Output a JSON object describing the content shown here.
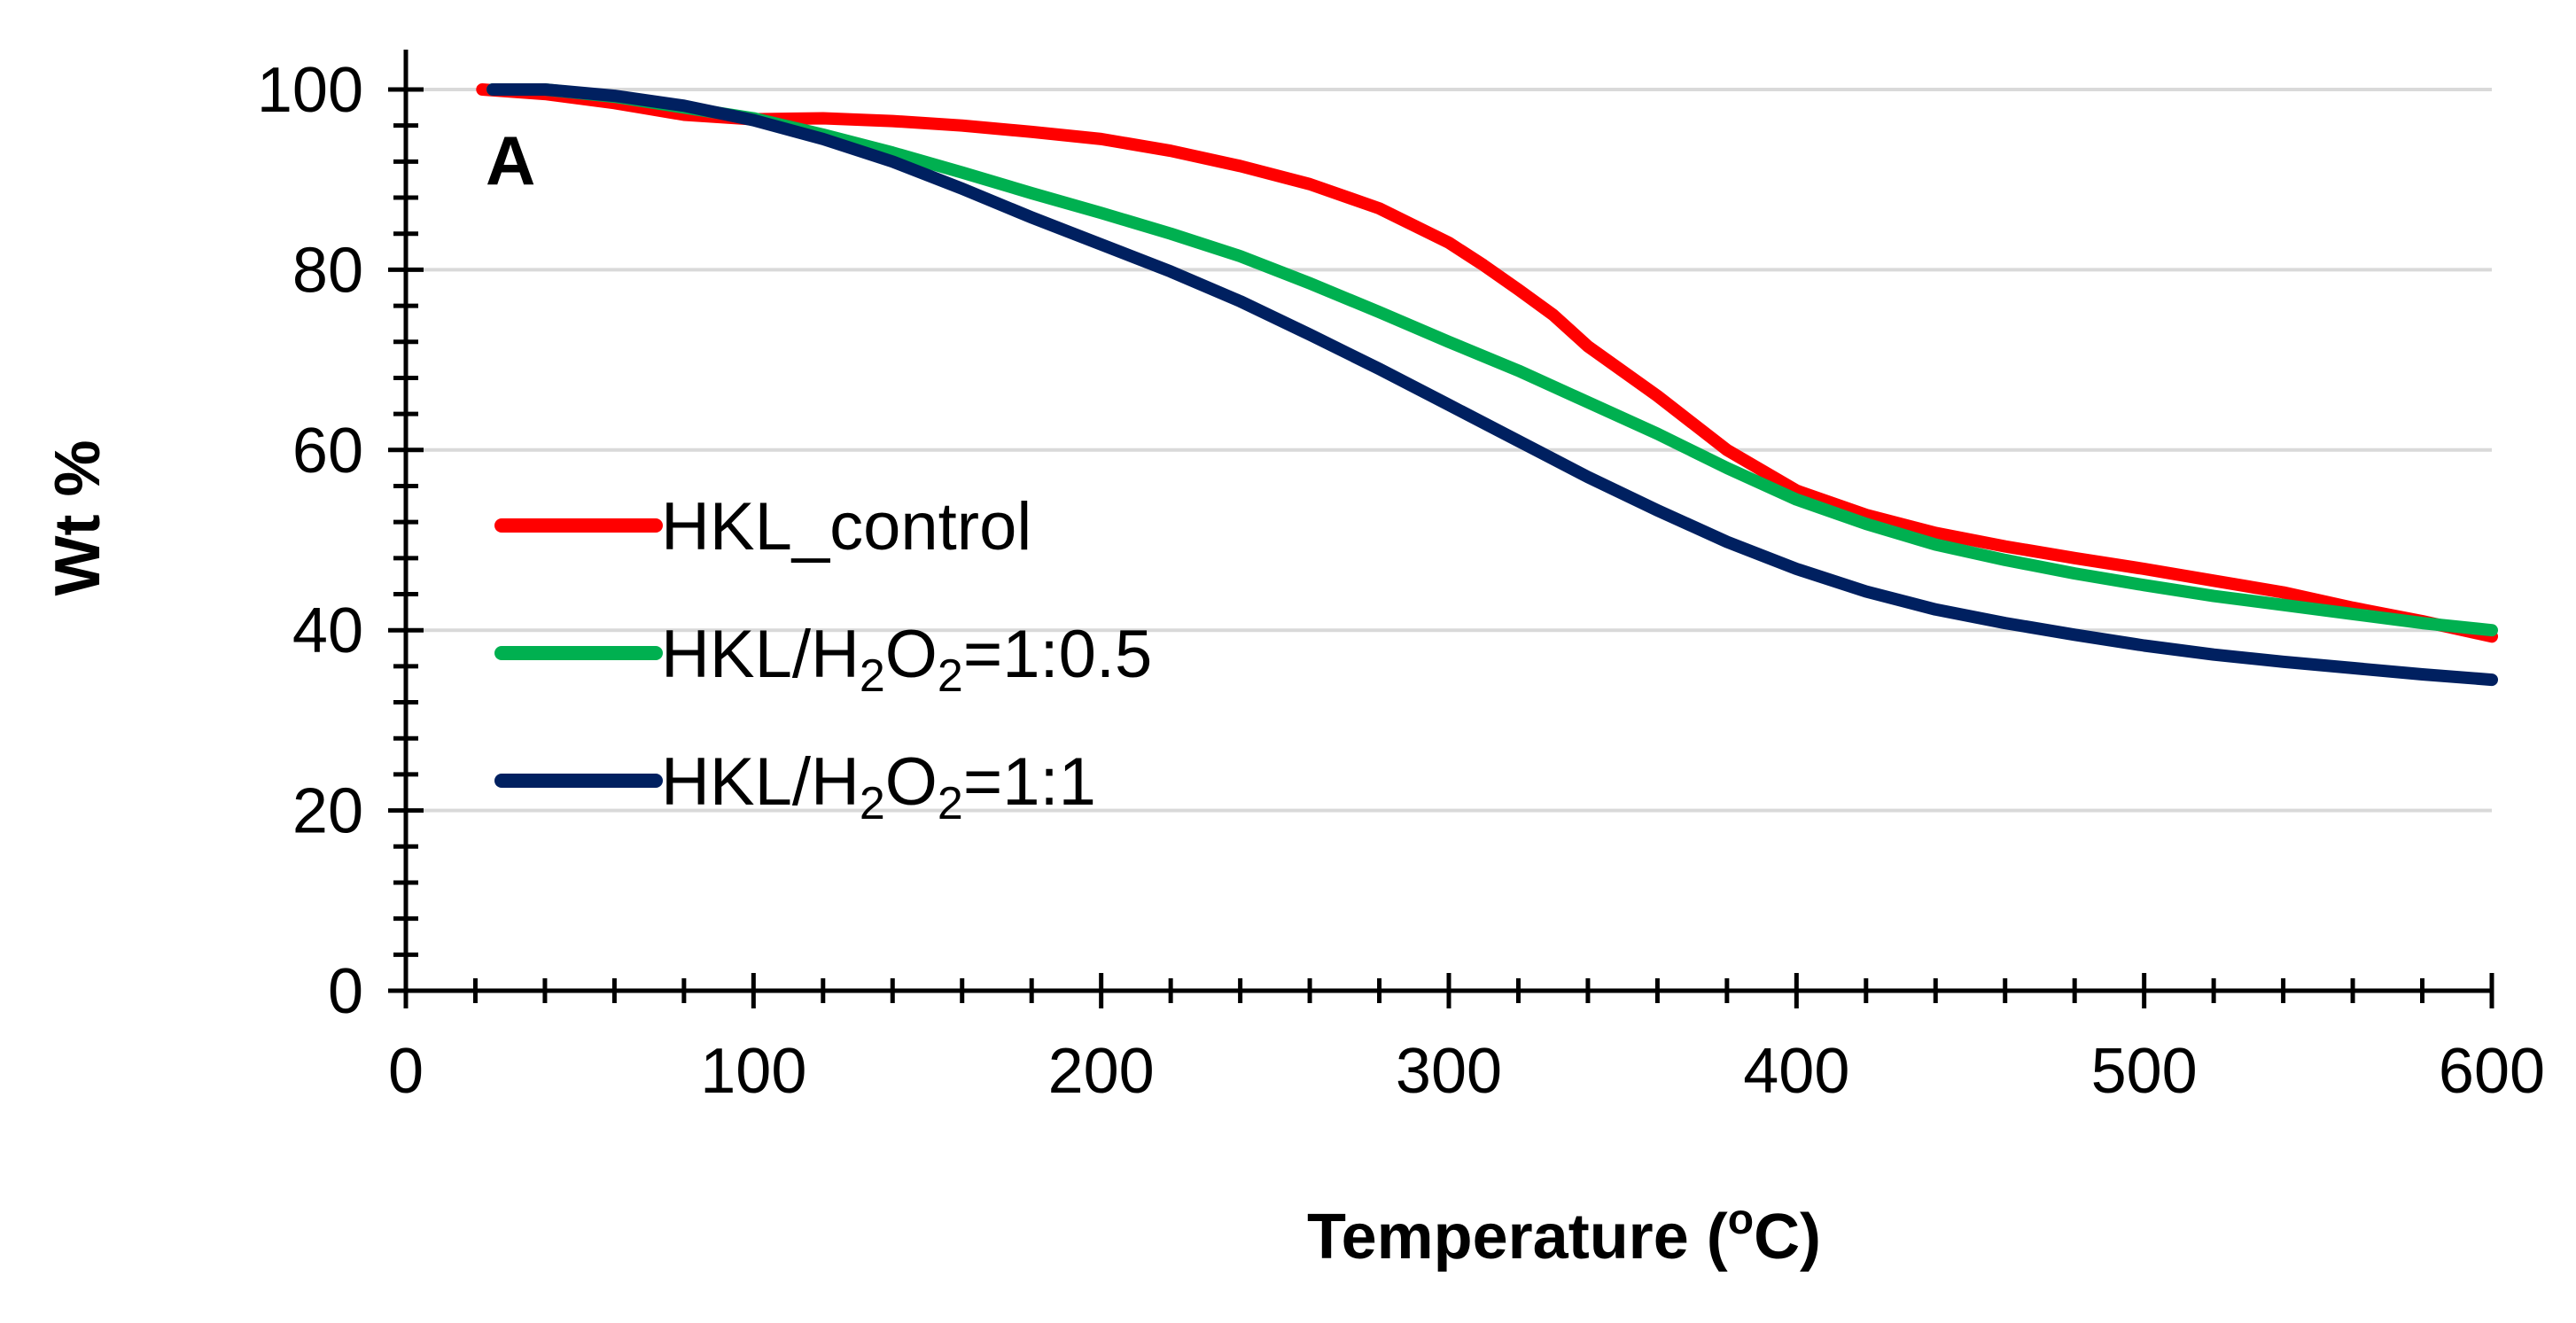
{
  "chart_data": {
    "type": "line",
    "panel_label": "A",
    "xlabel_main": "Temperature (",
    "xlabel_sup": "o",
    "xlabel_end": "C)",
    "ylabel": "Wt %",
    "xlim": [
      0,
      600
    ],
    "ylim": [
      0,
      100
    ],
    "x_ticks": [
      0,
      100,
      200,
      300,
      400,
      500,
      600
    ],
    "y_ticks": [
      0,
      20,
      40,
      60,
      80,
      100
    ],
    "x_tick_labels": [
      "0",
      "100",
      "200",
      "300",
      "400",
      "500",
      "600"
    ],
    "y_tick_labels": [
      "0",
      "20",
      "40",
      "60",
      "80",
      "100"
    ],
    "grid": "horizontal",
    "legend_position": "center-left",
    "series": [
      {
        "name": "HKL_control",
        "legend_parts": [
          {
            "t": "HKL_control",
            "sub": false
          }
        ],
        "color": "#ff0000",
        "points": [
          [
            22,
            100
          ],
          [
            40,
            99.5
          ],
          [
            60,
            98.5
          ],
          [
            80,
            97.2
          ],
          [
            100,
            96.7
          ],
          [
            120,
            96.8
          ],
          [
            140,
            96.5
          ],
          [
            160,
            96
          ],
          [
            180,
            95.3
          ],
          [
            200,
            94.5
          ],
          [
            220,
            93.2
          ],
          [
            240,
            91.5
          ],
          [
            260,
            89.5
          ],
          [
            280,
            86.8
          ],
          [
            300,
            83
          ],
          [
            310,
            80.5
          ],
          [
            320,
            77.8
          ],
          [
            330,
            75
          ],
          [
            340,
            71.5
          ],
          [
            360,
            66
          ],
          [
            380,
            60
          ],
          [
            400,
            55.5
          ],
          [
            420,
            52.8
          ],
          [
            440,
            50.8
          ],
          [
            460,
            49.3
          ],
          [
            480,
            48
          ],
          [
            500,
            46.8
          ],
          [
            520,
            45.5
          ],
          [
            540,
            44.2
          ],
          [
            560,
            42.5
          ],
          [
            580,
            41
          ],
          [
            600,
            39.3
          ]
        ]
      },
      {
        "name": "HKL/H2O2=1:0.5",
        "legend_parts": [
          {
            "t": "HKL/H",
            "sub": false
          },
          {
            "t": "2",
            "sub": true
          },
          {
            "t": "O",
            "sub": false
          },
          {
            "t": "2",
            "sub": true
          },
          {
            "t": "=1:0.5",
            "sub": false
          }
        ],
        "color": "#00b050",
        "points": [
          [
            25,
            100
          ],
          [
            40,
            100
          ],
          [
            60,
            99.2
          ],
          [
            80,
            98
          ],
          [
            100,
            96.8
          ],
          [
            120,
            95
          ],
          [
            140,
            93
          ],
          [
            160,
            90.8
          ],
          [
            180,
            88.5
          ],
          [
            200,
            86.3
          ],
          [
            220,
            84
          ],
          [
            240,
            81.5
          ],
          [
            260,
            78.5
          ],
          [
            280,
            75.3
          ],
          [
            300,
            72
          ],
          [
            320,
            68.8
          ],
          [
            340,
            65.3
          ],
          [
            360,
            61.8
          ],
          [
            380,
            58
          ],
          [
            400,
            54.5
          ],
          [
            420,
            51.8
          ],
          [
            440,
            49.5
          ],
          [
            460,
            47.8
          ],
          [
            480,
            46.3
          ],
          [
            500,
            45
          ],
          [
            520,
            43.8
          ],
          [
            540,
            42.8
          ],
          [
            560,
            41.8
          ],
          [
            580,
            40.8
          ],
          [
            600,
            40
          ]
        ]
      },
      {
        "name": "HKL/H2O2=1:1",
        "legend_parts": [
          {
            "t": "HKL/H",
            "sub": false
          },
          {
            "t": "2",
            "sub": true
          },
          {
            "t": "O",
            "sub": false
          },
          {
            "t": "2",
            "sub": true
          },
          {
            "t": "=1:1",
            "sub": false
          }
        ],
        "color": "#002060",
        "points": [
          [
            25,
            100
          ],
          [
            40,
            100
          ],
          [
            60,
            99.3
          ],
          [
            80,
            98.2
          ],
          [
            100,
            96.6
          ],
          [
            120,
            94.5
          ],
          [
            140,
            92
          ],
          [
            160,
            89
          ],
          [
            180,
            85.8
          ],
          [
            200,
            82.8
          ],
          [
            220,
            79.8
          ],
          [
            240,
            76.5
          ],
          [
            260,
            72.8
          ],
          [
            280,
            69
          ],
          [
            300,
            65
          ],
          [
            320,
            61
          ],
          [
            340,
            57
          ],
          [
            360,
            53.3
          ],
          [
            380,
            49.8
          ],
          [
            400,
            46.8
          ],
          [
            420,
            44.3
          ],
          [
            440,
            42.3
          ],
          [
            460,
            40.8
          ],
          [
            480,
            39.5
          ],
          [
            500,
            38.3
          ],
          [
            520,
            37.3
          ],
          [
            540,
            36.5
          ],
          [
            560,
            35.8
          ],
          [
            580,
            35.1
          ],
          [
            600,
            34.5
          ]
        ]
      }
    ]
  }
}
